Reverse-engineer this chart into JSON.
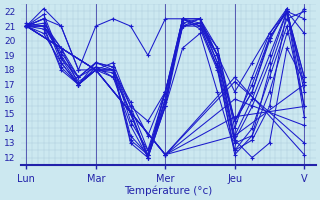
{
  "xlabel": "Température (°c)",
  "bg_color": "#cce8f0",
  "grid_color_major": "#a8c8d8",
  "grid_color_minor": "#b8d8e8",
  "line_color": "#1a1acc",
  "days": [
    "Lun",
    "Mar",
    "Mer",
    "Jeu",
    "V"
  ],
  "day_positions": [
    0,
    24,
    48,
    72,
    96
  ],
  "ylim": [
    11.5,
    22.5
  ],
  "xlim": [
    -2,
    100
  ],
  "yticks": [
    12,
    13,
    14,
    15,
    16,
    17,
    18,
    19,
    20,
    21,
    22
  ],
  "multi_series": [
    {
      "x": [
        0,
        6,
        12,
        18,
        24,
        30,
        36,
        42,
        48,
        54,
        60,
        66,
        72,
        78,
        84,
        90,
        96
      ],
      "y": [
        21.0,
        22.2,
        21.0,
        18.0,
        21.0,
        21.5,
        21.0,
        19.0,
        21.5,
        21.5,
        21.2,
        18.5,
        13.2,
        12.0,
        13.0,
        19.5,
        17.2
      ]
    },
    {
      "x": [
        0,
        6,
        12,
        18,
        24,
        30,
        36,
        42,
        48,
        54,
        60,
        66,
        72,
        78,
        84,
        90,
        96
      ],
      "y": [
        21.0,
        21.5,
        21.0,
        18.0,
        18.0,
        18.5,
        15.5,
        12.5,
        15.5,
        21.5,
        21.0,
        18.2,
        13.0,
        13.5,
        16.5,
        20.5,
        22.2
      ]
    },
    {
      "x": [
        0,
        6,
        12,
        18,
        24,
        30,
        36,
        42,
        48,
        54,
        60,
        66,
        72,
        78,
        84,
        90,
        96
      ],
      "y": [
        21.0,
        21.8,
        18.8,
        17.5,
        18.5,
        18.0,
        13.2,
        12.2,
        16.0,
        21.5,
        20.8,
        18.0,
        12.5,
        14.0,
        17.5,
        21.0,
        15.5
      ]
    },
    {
      "x": [
        0,
        6,
        12,
        18,
        24,
        30,
        36,
        42,
        48,
        54,
        60,
        66,
        72,
        78,
        84,
        90,
        96
      ],
      "y": [
        21.0,
        21.0,
        19.5,
        17.5,
        18.2,
        18.0,
        13.0,
        12.0,
        16.5,
        21.5,
        21.5,
        19.0,
        13.5,
        16.0,
        19.0,
        22.0,
        14.8
      ]
    },
    {
      "x": [
        0,
        6,
        12,
        18,
        24,
        30,
        36,
        42,
        48,
        54,
        60,
        66,
        72,
        78,
        84,
        90,
        96
      ],
      "y": [
        21.0,
        21.0,
        19.0,
        17.2,
        18.0,
        17.8,
        15.0,
        12.0,
        15.5,
        21.0,
        21.2,
        19.5,
        14.5,
        16.5,
        20.2,
        22.0,
        17.0
      ]
    },
    {
      "x": [
        0,
        6,
        12,
        18,
        24,
        30,
        36,
        42,
        48,
        54,
        60,
        66,
        72,
        78,
        84,
        90,
        96
      ],
      "y": [
        21.0,
        21.5,
        18.5,
        17.0,
        18.0,
        18.0,
        13.5,
        12.2,
        16.0,
        21.5,
        21.0,
        18.2,
        12.2,
        13.5,
        18.0,
        21.5,
        22.0
      ]
    },
    {
      "x": [
        0,
        6,
        12,
        18,
        24,
        30,
        36,
        42,
        48,
        54,
        60,
        66,
        72,
        78,
        84,
        90,
        96
      ],
      "y": [
        21.2,
        21.0,
        19.2,
        17.5,
        18.5,
        18.2,
        14.5,
        12.5,
        16.5,
        21.0,
        21.5,
        19.5,
        14.0,
        17.5,
        20.5,
        22.2,
        15.5
      ]
    },
    {
      "x": [
        0,
        6,
        12,
        18,
        24,
        30,
        36,
        42,
        48,
        54,
        60,
        66,
        72,
        78,
        84,
        90,
        96
      ],
      "y": [
        21.0,
        20.5,
        18.5,
        17.0,
        18.0,
        18.0,
        15.5,
        14.5,
        16.5,
        21.0,
        21.0,
        19.0,
        16.5,
        18.5,
        20.5,
        22.0,
        17.5
      ]
    },
    {
      "x": [
        0,
        6,
        12,
        18,
        24,
        30,
        36,
        42,
        48,
        54,
        60,
        66,
        72,
        78,
        84,
        90,
        96
      ],
      "y": [
        21.0,
        21.0,
        18.0,
        17.0,
        18.0,
        17.5,
        15.2,
        12.0,
        15.5,
        19.5,
        20.5,
        16.5,
        12.5,
        13.2,
        15.5,
        22.0,
        21.5
      ]
    },
    {
      "x": [
        0,
        6,
        12,
        18,
        24,
        30,
        36,
        42,
        48,
        54,
        60,
        66,
        72,
        78,
        84,
        90,
        96
      ],
      "y": [
        21.0,
        20.8,
        18.2,
        17.0,
        18.0,
        18.0,
        15.8,
        13.5,
        16.5,
        21.0,
        21.2,
        19.0,
        13.2,
        15.5,
        18.5,
        22.0,
        20.5
      ]
    },
    {
      "x": [
        0,
        6,
        12,
        18,
        24,
        30,
        36,
        42,
        48,
        54,
        60,
        66,
        72,
        78,
        84,
        90,
        96
      ],
      "y": [
        21.0,
        21.2,
        19.5,
        17.0,
        18.2,
        17.5,
        14.2,
        12.0,
        15.8,
        21.2,
        21.5,
        18.5,
        14.5,
        17.0,
        20.2,
        22.0,
        17.5
      ]
    },
    {
      "x": [
        0,
        6,
        12,
        18,
        24,
        30,
        36,
        42,
        48,
        54,
        60,
        66,
        72,
        78,
        84,
        90,
        96
      ],
      "y": [
        21.0,
        21.5,
        18.8,
        17.0,
        18.5,
        18.2,
        15.0,
        12.2,
        16.5,
        21.5,
        21.5,
        19.0,
        14.5,
        16.5,
        20.0,
        22.2,
        16.5
      ]
    },
    {
      "x": [
        0,
        24,
        48,
        72,
        96
      ],
      "y": [
        21.0,
        18.0,
        12.2,
        13.5,
        17.0
      ]
    },
    {
      "x": [
        0,
        24,
        48,
        72,
        96
      ],
      "y": [
        21.0,
        18.0,
        12.2,
        14.8,
        15.5
      ]
    },
    {
      "x": [
        0,
        24,
        48,
        72,
        96
      ],
      "y": [
        21.0,
        18.0,
        12.2,
        16.0,
        14.2
      ]
    },
    {
      "x": [
        0,
        24,
        48,
        72,
        96
      ],
      "y": [
        21.0,
        18.0,
        12.2,
        17.2,
        13.0
      ]
    },
    {
      "x": [
        0,
        24,
        48,
        72,
        96
      ],
      "y": [
        21.0,
        18.0,
        12.2,
        17.5,
        12.2
      ]
    }
  ]
}
